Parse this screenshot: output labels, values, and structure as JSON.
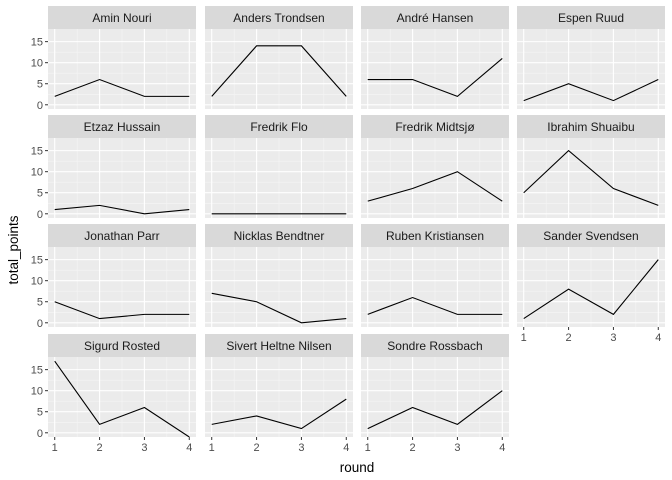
{
  "chart_data": {
    "type": "line",
    "layout": "facet_wrap",
    "ncol": 4,
    "xlabel": "round",
    "ylabel": "total_points",
    "x": [
      1,
      2,
      3,
      4
    ],
    "xlim": [
      0.85,
      4.15
    ],
    "ylim": [
      -1,
      18
    ],
    "yticks": [
      0,
      5,
      10,
      15
    ],
    "xticks": [
      1,
      2,
      3,
      4
    ],
    "grid": true,
    "colors": {
      "panel_bg": "#ebebeb",
      "strip_bg": "#d9d9d9",
      "grid_major": "#ffffff",
      "grid_minor": "#f5f5f5",
      "line": "#000000",
      "tick": "#333333"
    },
    "panels": [
      {
        "name": "Amin Nouri",
        "values": [
          2,
          6,
          2,
          2
        ]
      },
      {
        "name": "Anders Trondsen",
        "values": [
          2,
          14,
          14,
          2
        ]
      },
      {
        "name": "André Hansen",
        "values": [
          6,
          6,
          2,
          11
        ]
      },
      {
        "name": "Espen Ruud",
        "values": [
          1,
          5,
          1,
          6
        ]
      },
      {
        "name": "Etzaz Hussain",
        "values": [
          1,
          2,
          0,
          1
        ]
      },
      {
        "name": "Fredrik Flo",
        "values": [
          0,
          0,
          0,
          0
        ]
      },
      {
        "name": "Fredrik Midtsjø",
        "values": [
          3,
          6,
          10,
          3
        ]
      },
      {
        "name": "Ibrahim Shuaibu",
        "values": [
          5,
          15,
          6,
          2
        ]
      },
      {
        "name": "Jonathan Parr",
        "values": [
          5,
          1,
          2,
          2
        ]
      },
      {
        "name": "Nicklas Bendtner",
        "values": [
          7,
          5,
          0,
          1
        ]
      },
      {
        "name": "Ruben Kristiansen",
        "values": [
          2,
          6,
          2,
          2
        ]
      },
      {
        "name": "Sander Svendsen",
        "values": [
          1,
          8,
          2,
          15
        ]
      },
      {
        "name": "Sigurd Rosted",
        "values": [
          17,
          2,
          6,
          -1
        ]
      },
      {
        "name": "Sivert Heltne Nilsen",
        "values": [
          2,
          4,
          1,
          8
        ]
      },
      {
        "name": "Sondre Rossbach",
        "values": [
          1,
          6,
          2,
          10
        ]
      }
    ]
  }
}
